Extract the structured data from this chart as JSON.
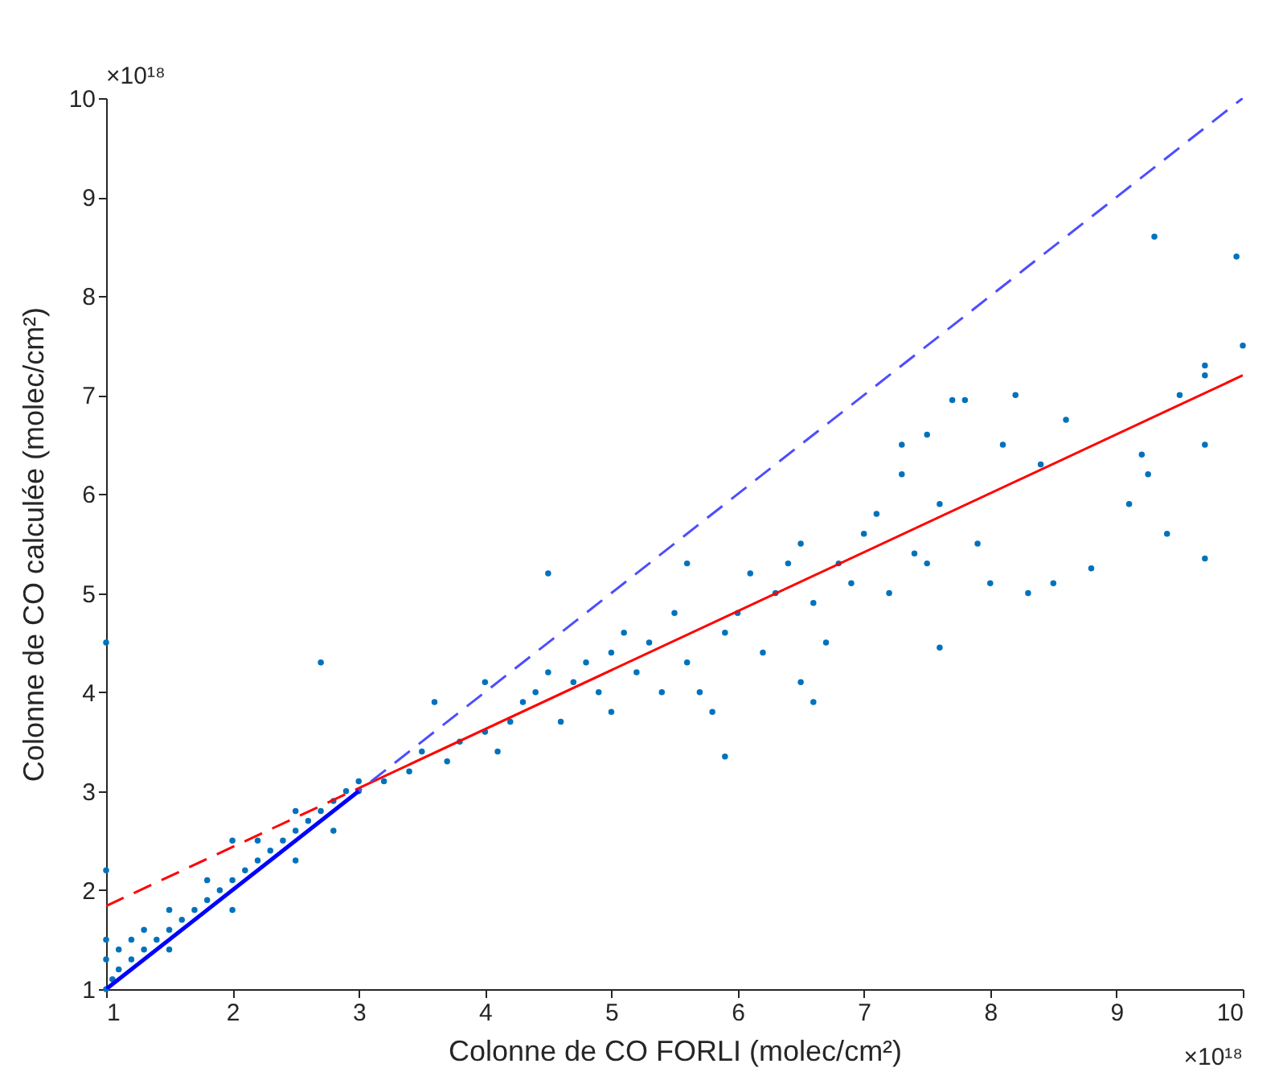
{
  "chart_data": {
    "type": "scatter",
    "xlabel": "Colonne de CO FORLI (molec/cm²)",
    "ylabel": "Colonne de CO calculée (molec/cm²)",
    "xlim": [
      1,
      10
    ],
    "ylim": [
      1,
      10
    ],
    "xticks": [
      1,
      2,
      3,
      4,
      5,
      6,
      7,
      8,
      9,
      10
    ],
    "yticks": [
      1,
      2,
      3,
      4,
      5,
      6,
      7,
      8,
      9,
      10
    ],
    "annotations": [
      "×10¹⁸",
      "×10¹⁸"
    ],
    "series": [
      {
        "marker": "circle",
        "color": "#0072bd",
        "x": [
          1.0,
          1.05,
          1.1,
          1.0,
          1.0,
          1.0,
          1.0,
          1.1,
          1.2,
          1.2,
          1.3,
          1.3,
          1.4,
          1.5,
          1.5,
          1.6,
          1.7,
          1.8,
          1.8,
          1.9,
          2.0,
          2.0,
          2.1,
          2.2,
          2.2,
          2.3,
          2.4,
          2.5,
          2.5,
          2.6,
          2.7,
          2.7,
          2.8,
          2.9,
          3.0,
          3.0,
          2.5,
          2.0,
          1.5,
          2.8,
          3.2,
          3.4,
          3.5,
          3.6,
          3.7,
          3.8,
          4.0,
          4.0,
          4.1,
          4.2,
          4.3,
          4.4,
          4.5,
          4.5,
          4.6,
          4.7,
          4.8,
          4.9,
          5.0,
          5.0,
          5.1,
          5.2,
          5.3,
          5.4,
          5.5,
          5.6,
          5.6,
          5.7,
          5.8,
          5.9,
          5.9,
          6.0,
          6.1,
          6.2,
          6.3,
          6.4,
          6.5,
          6.5,
          6.6,
          6.6,
          6.7,
          6.8,
          6.9,
          7.0,
          7.1,
          7.2,
          7.3,
          7.3,
          7.4,
          7.5,
          7.5,
          7.6,
          7.6,
          7.7,
          7.8,
          7.9,
          8.0,
          8.1,
          8.2,
          8.3,
          8.4,
          8.5,
          8.6,
          8.8,
          9.1,
          9.2,
          9.25,
          9.3,
          9.4,
          9.5,
          9.7,
          9.7,
          9.7,
          9.7,
          9.95,
          10.0
        ],
        "values": [
          1.0,
          1.1,
          1.2,
          1.3,
          1.5,
          2.2,
          4.5,
          1.4,
          1.3,
          1.5,
          1.4,
          1.6,
          1.5,
          1.6,
          1.8,
          1.7,
          1.8,
          1.9,
          2.1,
          2.0,
          2.1,
          2.5,
          2.2,
          2.3,
          2.5,
          2.4,
          2.5,
          2.6,
          2.8,
          2.7,
          2.8,
          4.3,
          2.9,
          3.0,
          3.0,
          3.1,
          2.3,
          1.8,
          1.4,
          2.6,
          3.1,
          3.2,
          3.4,
          3.9,
          3.3,
          3.5,
          3.6,
          4.1,
          3.4,
          3.7,
          3.9,
          4.0,
          4.2,
          5.2,
          3.7,
          4.1,
          4.3,
          4.0,
          4.4,
          3.8,
          4.6,
          4.2,
          4.5,
          4.0,
          4.8,
          5.3,
          4.3,
          4.0,
          3.8,
          3.35,
          4.6,
          4.8,
          5.2,
          4.4,
          5.0,
          5.3,
          5.5,
          4.1,
          4.9,
          3.9,
          4.5,
          5.3,
          5.1,
          5.6,
          5.8,
          5.0,
          6.2,
          6.5,
          5.4,
          6.6,
          5.3,
          4.45,
          5.9,
          6.95,
          6.95,
          5.5,
          5.1,
          6.5,
          7.0,
          5.0,
          6.3,
          5.1,
          6.75,
          5.25,
          5.9,
          6.4,
          6.2,
          8.6,
          5.6,
          7.0,
          7.3,
          7.2,
          6.5,
          5.35,
          8.4,
          7.5
        ]
      },
      {
        "type": "line",
        "color": "#ff0000",
        "line_style": "dashed",
        "marker": "none",
        "x": [
          1,
          3
        ],
        "values": [
          1.84,
          3.03
        ]
      },
      {
        "type": "line",
        "color": "#ff0000",
        "line_style": "solid",
        "marker": "none",
        "x": [
          3,
          10
        ],
        "values": [
          3.03,
          7.2
        ]
      },
      {
        "type": "line",
        "color": "#4d4dff",
        "line_style": "dashed",
        "marker": "none",
        "x": [
          1,
          10
        ],
        "values": [
          1,
          10
        ]
      },
      {
        "type": "line",
        "color": "#0000ff",
        "line_style": "solid",
        "marker": "none",
        "x": [
          1,
          3
        ],
        "values": [
          1,
          3
        ]
      }
    ]
  }
}
